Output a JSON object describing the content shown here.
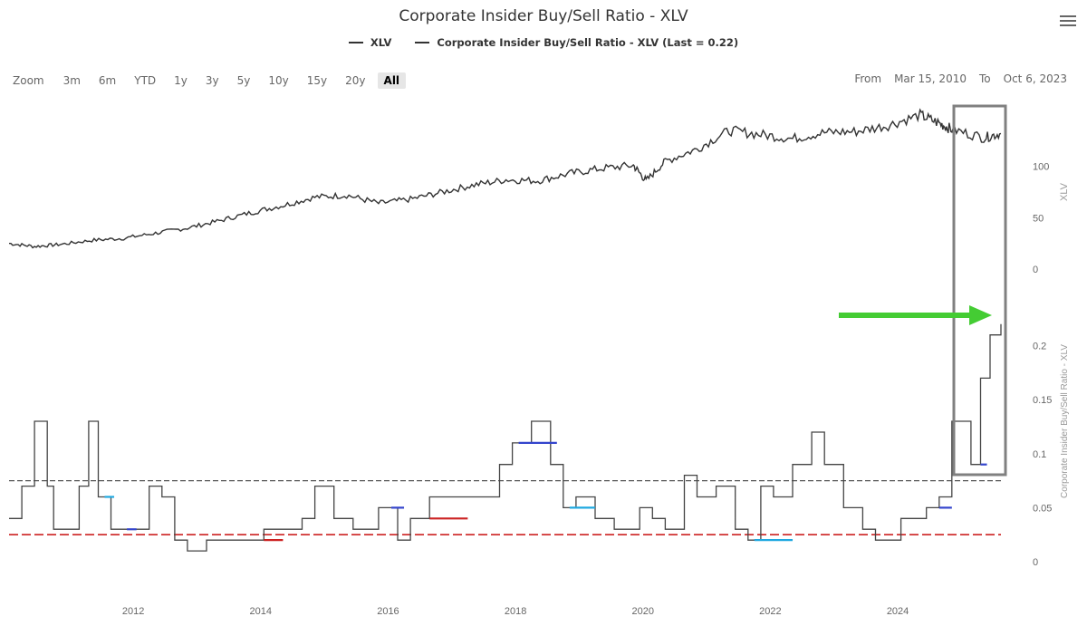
{
  "title": "Corporate Insider Buy/Sell Ratio - XLV",
  "legend": [
    "XLV",
    "Corporate Insider Buy/Sell Ratio - XLV (Last = 0.22)"
  ],
  "range_selector": {
    "zoom_label": "Zoom",
    "buttons": [
      "3m",
      "6m",
      "YTD",
      "1y",
      "3y",
      "5y",
      "10y",
      "15y",
      "20y",
      "All"
    ],
    "active": "All"
  },
  "date_range": {
    "from_label": "From",
    "from_value": "Mar 15, 2010",
    "to_label": "To",
    "to_value": "Oct 6, 2023"
  },
  "menu_icon": "hamburger-menu-icon",
  "colors": {
    "line": "#333333",
    "ratio_blue": "#3344cc",
    "ratio_cyan": "#1fa8e0",
    "ratio_red": "#cc2222",
    "arrow": "#44cc33",
    "box": "#808080"
  },
  "chart_data": {
    "type": "line",
    "x_tick_labels": [
      "2012",
      "2014",
      "2016",
      "2018",
      "2020",
      "2022",
      "2024"
    ],
    "series": [
      {
        "name": "XLV",
        "axis": "XLV",
        "ylim": [
          0,
          150
        ],
        "tick_labels": [
          "0",
          "50",
          "100"
        ],
        "x": [
          2010.2,
          2010.6,
          2011.0,
          2011.5,
          2012.0,
          2012.5,
          2013.0,
          2013.5,
          2014.0,
          2014.5,
          2015.0,
          2015.5,
          2016.0,
          2016.5,
          2017.0,
          2017.5,
          2018.0,
          2018.5,
          2019.0,
          2019.5,
          2020.0,
          2020.2,
          2020.5,
          2021.0,
          2021.5,
          2022.0,
          2022.5,
          2023.0,
          2023.5,
          2024.0,
          2024.5,
          2024.8,
          2025.0,
          2025.5,
          2025.77
        ],
        "values": [
          25,
          22,
          24,
          28,
          30,
          35,
          40,
          47,
          55,
          62,
          70,
          72,
          64,
          68,
          75,
          82,
          87,
          86,
          93,
          98,
          101,
          86,
          105,
          117,
          135,
          131,
          127,
          133,
          134,
          140,
          150,
          142,
          136,
          128,
          132
        ]
      },
      {
        "name": "Corporate Insider Buy/Sell Ratio - XLV (Last = 0.22)",
        "axis": "Corporate Insider Buy/Sell Ratio - XLV",
        "ylim": [
          0,
          0.25
        ],
        "tick_labels": [
          "0",
          "0.05",
          "0.1",
          "0.15",
          "0.2"
        ],
        "x": [
          2010.2,
          2010.4,
          2010.6,
          2010.8,
          2010.9,
          2011.1,
          2011.3,
          2011.45,
          2011.6,
          2011.8,
          2012.0,
          2012.2,
          2012.4,
          2012.6,
          2012.8,
          2013.0,
          2013.3,
          2013.6,
          2013.8,
          2014.0,
          2014.2,
          2014.5,
          2014.8,
          2015.0,
          2015.3,
          2015.6,
          2016.0,
          2016.3,
          2016.5,
          2016.8,
          2017.2,
          2017.6,
          2017.9,
          2018.1,
          2018.4,
          2018.7,
          2018.9,
          2019.1,
          2019.4,
          2019.7,
          2019.9,
          2020.1,
          2020.3,
          2020.5,
          2020.8,
          2021.0,
          2021.3,
          2021.6,
          2021.8,
          2022.0,
          2022.2,
          2022.5,
          2022.8,
          2023.0,
          2023.3,
          2023.6,
          2023.8,
          2024.0,
          2024.2,
          2024.4,
          2024.6,
          2024.8,
          2025.0,
          2025.15,
          2025.3,
          2025.45,
          2025.6,
          2025.77
        ],
        "values": [
          0.04,
          0.07,
          0.13,
          0.07,
          0.03,
          0.03,
          0.07,
          0.13,
          0.06,
          0.03,
          0.03,
          0.03,
          0.07,
          0.06,
          0.02,
          0.01,
          0.02,
          0.02,
          0.02,
          0.02,
          0.03,
          0.03,
          0.04,
          0.07,
          0.04,
          0.03,
          0.05,
          0.02,
          0.04,
          0.06,
          0.06,
          0.06,
          0.09,
          0.11,
          0.13,
          0.09,
          0.05,
          0.06,
          0.04,
          0.03,
          0.03,
          0.05,
          0.04,
          0.03,
          0.08,
          0.06,
          0.07,
          0.03,
          0.02,
          0.07,
          0.06,
          0.09,
          0.12,
          0.09,
          0.05,
          0.03,
          0.02,
          0.02,
          0.04,
          0.04,
          0.05,
          0.06,
          0.13,
          0.13,
          0.09,
          0.17,
          0.21,
          0.22
        ]
      }
    ],
    "reference_lines": [
      0.075,
      0.025
    ],
    "annotations": [
      "green arrow pointing at last value",
      "gray box highlighting recent period"
    ]
  }
}
